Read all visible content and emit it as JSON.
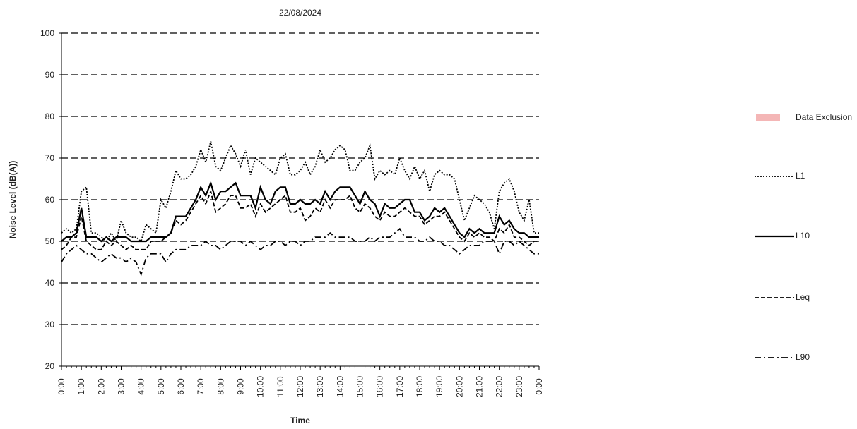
{
  "chart_data": {
    "type": "line",
    "title": "22/08/2024",
    "x_label": "Time",
    "y_label": "Noise Level (dB(A))",
    "categories": [
      "0:00",
      null,
      null,
      null,
      "1:00",
      null,
      null,
      null,
      "2:00",
      null,
      null,
      null,
      "3:00",
      null,
      null,
      null,
      "4:00",
      null,
      null,
      null,
      "5:00",
      null,
      null,
      null,
      "6:00",
      null,
      null,
      null,
      "7:00",
      null,
      null,
      null,
      "8:00",
      null,
      null,
      null,
      "9:00",
      null,
      null,
      null,
      "10:00",
      null,
      null,
      null,
      "11:00",
      null,
      null,
      null,
      "12:00",
      null,
      null,
      null,
      "13:00",
      null,
      null,
      null,
      "14:00",
      null,
      null,
      null,
      "15:00",
      null,
      null,
      null,
      "16:00",
      null,
      null,
      null,
      "17:00",
      null,
      null,
      null,
      "18:00",
      null,
      null,
      null,
      "19:00",
      null,
      null,
      null,
      "20:00",
      null,
      null,
      null,
      "21:00",
      null,
      null,
      null,
      "22:00",
      null,
      null,
      null,
      "23:00",
      null,
      null,
      null,
      "0:00"
    ],
    "series": [
      {
        "name": "Data Exclusion",
        "color": "#f4b6b6",
        "style": "area",
        "values": [
          null,
          null,
          null,
          null,
          null,
          null,
          null,
          null,
          null,
          null,
          null,
          null,
          null,
          null,
          null,
          null,
          null,
          null,
          null,
          null,
          null,
          null,
          null,
          null,
          null,
          null,
          null,
          null,
          null,
          null,
          null,
          null,
          null,
          null,
          null,
          null,
          null,
          null,
          null,
          null,
          null,
          null,
          null,
          null,
          null,
          null,
          null,
          null,
          null,
          null,
          null,
          null,
          null,
          null,
          null,
          null,
          null,
          null,
          null,
          null,
          null,
          null,
          null,
          null,
          null,
          null,
          null,
          null,
          null,
          null,
          null,
          null,
          null,
          null,
          null,
          null,
          null,
          null,
          null,
          null,
          null,
          null,
          null,
          null,
          null,
          null,
          null,
          null,
          null,
          null,
          null,
          null,
          null,
          null,
          null,
          null,
          null
        ]
      },
      {
        "name": "L1",
        "color": "#000000",
        "style": "dotted",
        "values": [
          52,
          53,
          52,
          53,
          62,
          63,
          52,
          52,
          51,
          50,
          52,
          50,
          55,
          52,
          51,
          51,
          50,
          54,
          53,
          52,
          60,
          58,
          62,
          67,
          65,
          65,
          66,
          68,
          72,
          69,
          74,
          68,
          67,
          70,
          73,
          71,
          68,
          72,
          66,
          70,
          69,
          68,
          67,
          66,
          70,
          71,
          66,
          66,
          67,
          69,
          66,
          68,
          72,
          69,
          70,
          72,
          73,
          72,
          67,
          67,
          69,
          70,
          73,
          65,
          67,
          66,
          67,
          66,
          70,
          67,
          65,
          68,
          65,
          67,
          62,
          66,
          67,
          66,
          66,
          65,
          60,
          55,
          58,
          61,
          60,
          59,
          57,
          53,
          62,
          64,
          65,
          62,
          57,
          55,
          60,
          52,
          52
        ]
      },
      {
        "name": "L10",
        "color": "#000000",
        "style": "solid",
        "values": [
          50,
          51,
          51,
          52,
          58,
          51,
          51,
          51,
          50,
          51,
          50,
          51,
          51,
          51,
          50,
          50,
          50,
          50,
          51,
          51,
          51,
          51,
          52,
          56,
          56,
          56,
          58,
          60,
          63,
          61,
          64,
          60,
          62,
          62,
          63,
          64,
          61,
          61,
          61,
          58,
          63,
          60,
          59,
          62,
          63,
          63,
          59,
          59,
          60,
          59,
          59,
          60,
          59,
          62,
          60,
          62,
          63,
          63,
          63,
          61,
          59,
          62,
          60,
          59,
          56,
          59,
          58,
          58,
          59,
          60,
          60,
          57,
          57,
          55,
          56,
          58,
          57,
          58,
          56,
          54,
          52,
          51,
          53,
          52,
          53,
          52,
          52,
          52,
          56,
          54,
          55,
          53,
          52,
          52,
          51,
          51,
          51
        ]
      },
      {
        "name": "Leq",
        "color": "#000000",
        "style": "dashed",
        "values": [
          48,
          49,
          51,
          51,
          56,
          50,
          49,
          48,
          48,
          50,
          49,
          50,
          49,
          48,
          49,
          48,
          48,
          48,
          50,
          50,
          50,
          51,
          52,
          55,
          54,
          55,
          57,
          59,
          61,
          59,
          62,
          57,
          58,
          59,
          61,
          61,
          58,
          58,
          59,
          56,
          59,
          57,
          58,
          59,
          60,
          61,
          57,
          57,
          58,
          55,
          56,
          58,
          57,
          60,
          58,
          60,
          60,
          60,
          61,
          58,
          57,
          59,
          58,
          56,
          55,
          57,
          56,
          56,
          57,
          58,
          57,
          56,
          56,
          54,
          55,
          56,
          56,
          57,
          55,
          53,
          51,
          50,
          52,
          51,
          52,
          51,
          51,
          50,
          53,
          52,
          54,
          51,
          51,
          50,
          49,
          50,
          50
        ]
      },
      {
        "name": "L90",
        "color": "#000000",
        "style": "dashdot",
        "values": [
          45,
          47,
          48,
          49,
          48,
          47,
          47,
          46,
          45,
          46,
          47,
          46,
          46,
          45,
          46,
          45,
          42,
          46,
          47,
          47,
          47,
          45,
          47,
          48,
          48,
          48,
          49,
          49,
          49,
          50,
          49,
          49,
          48,
          49,
          50,
          50,
          50,
          49,
          50,
          49,
          48,
          49,
          49,
          50,
          50,
          49,
          50,
          50,
          49,
          50,
          50,
          51,
          51,
          51,
          52,
          51,
          51,
          51,
          51,
          50,
          50,
          50,
          51,
          50,
          51,
          51,
          51,
          52,
          53,
          51,
          51,
          51,
          50,
          50,
          51,
          50,
          50,
          49,
          49,
          48,
          47,
          48,
          49,
          49,
          49,
          50,
          50,
          50,
          47,
          50,
          50,
          49,
          50,
          49,
          48,
          47,
          47
        ]
      }
    ],
    "ylim": [
      20,
      100
    ],
    "yticks": [
      20,
      30,
      40,
      50,
      60,
      70,
      80,
      90,
      100
    ],
    "grid": true
  }
}
